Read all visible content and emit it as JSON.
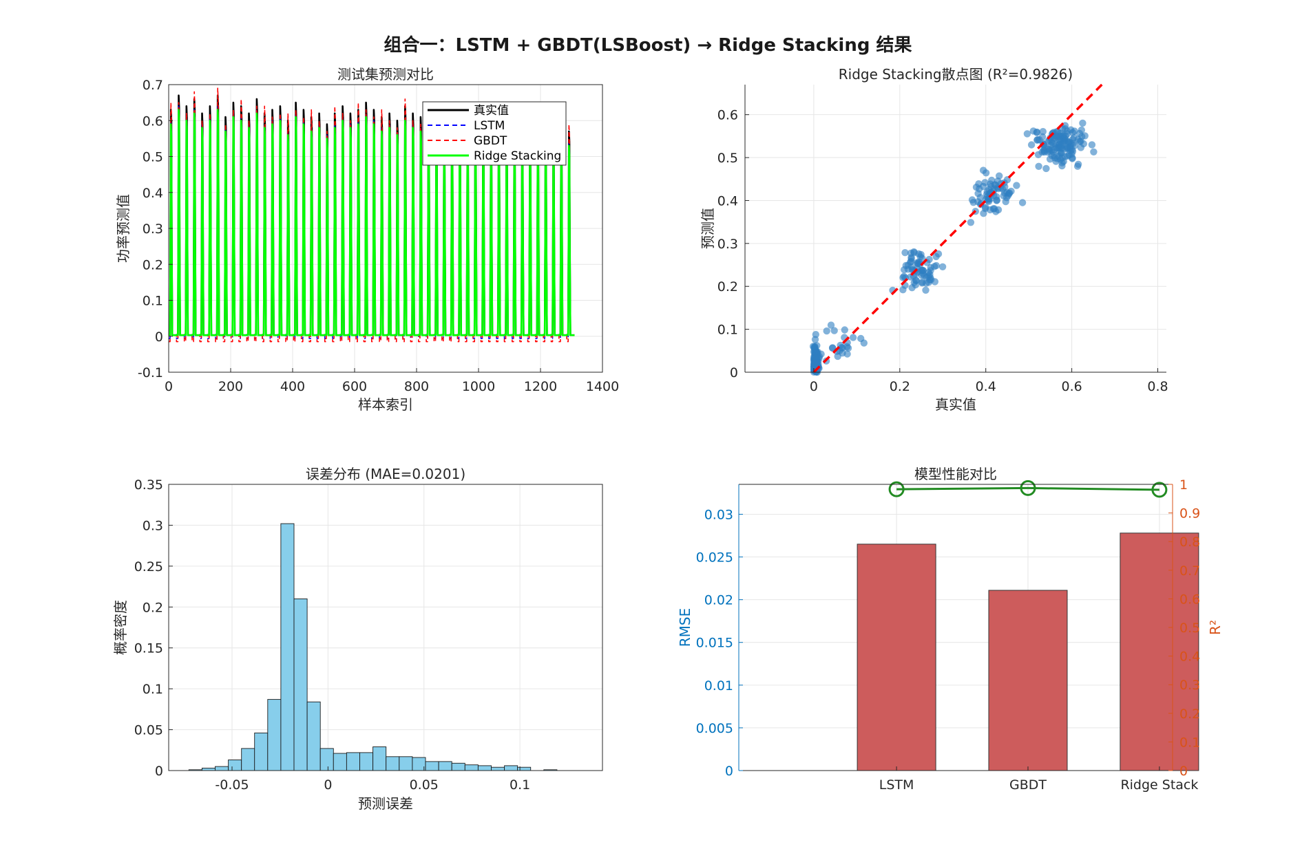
{
  "figure": {
    "title": "组合一：LSTM + GBDT(LSBoost) → Ridge Stacking 结果"
  },
  "colors": {
    "actual": "#000000",
    "lstm": "#0000ff",
    "gbdt": "#ff0000",
    "ridge": "#00ff00",
    "scatter": "#2f7fc2",
    "hist": "#87ceeb",
    "bar": "#cd5c5c",
    "r2_line": "#228b22",
    "rmse_axis": "#0072bd",
    "r2_axis": "#d95319"
  },
  "chart_data": [
    {
      "id": "timeseries",
      "type": "line",
      "title": "测试集预测对比",
      "xlabel": "样本索引",
      "ylabel": "功率预测值",
      "xlim": [
        0,
        1400
      ],
      "ylim": [
        -0.1,
        0.7
      ],
      "xticks": [
        0,
        200,
        400,
        600,
        800,
        1000,
        1200,
        1400
      ],
      "yticks": [
        -0.1,
        0,
        0.1,
        0.2,
        0.3,
        0.4,
        0.5,
        0.6,
        0.7
      ],
      "xtick_labels": [
        "0",
        "200",
        "400",
        "600",
        "800",
        "1000",
        "1200",
        "1400"
      ],
      "ytick_labels": [
        "-0.1",
        "0",
        "0.1",
        "0.2",
        "0.3",
        "0.4",
        "0.5",
        "0.6",
        "0.7"
      ],
      "grid": true,
      "legend_position": "top-right",
      "n_samples": 1310,
      "cycle_peaks_actual": [
        0.63,
        0.67,
        0.64,
        0.66,
        0.62,
        0.64,
        0.67,
        0.61,
        0.65,
        0.64,
        0.62,
        0.66,
        0.62,
        0.63,
        0.64,
        0.6,
        0.65,
        0.63,
        0.61,
        0.62,
        0.59,
        0.62,
        0.64,
        0.62,
        0.63,
        0.65,
        0.63,
        0.61,
        0.62,
        0.6,
        0.64,
        0.62,
        0.61,
        0.63,
        0.62,
        0.6,
        0.61,
        0.62,
        0.6,
        0.6,
        0.61,
        0.59,
        0.6,
        0.58,
        0.59,
        0.58,
        0.58,
        0.57,
        0.58,
        0.57,
        0.58,
        0.57
      ],
      "series": [
        {
          "name": "真实值",
          "style": "solid",
          "peak_offset": 0.0
        },
        {
          "name": "LSTM",
          "style": "dashed",
          "peak_offset": -0.03
        },
        {
          "name": "GBDT",
          "style": "dashed",
          "peak_offset": -0.01
        },
        {
          "name": "Ridge Stacking",
          "style": "solid",
          "peak_offset": -0.04
        }
      ]
    },
    {
      "id": "scatter",
      "type": "scatter",
      "title": "Ridge Stacking散点图 (R²=0.9826)",
      "xlabel": "真实值",
      "ylabel": "预测值",
      "xlim": [
        -0.16,
        0.82
      ],
      "ylim": [
        0,
        0.67
      ],
      "xticks": [
        0,
        0.2,
        0.4,
        0.6,
        0.8
      ],
      "yticks": [
        0,
        0.1,
        0.2,
        0.3,
        0.4,
        0.5,
        0.6
      ],
      "xtick_labels": [
        "0",
        "0.2",
        "0.4",
        "0.6",
        "0.8"
      ],
      "ytick_labels": [
        "0",
        "0.1",
        "0.2",
        "0.3",
        "0.4",
        "0.5",
        "0.6"
      ],
      "grid": true,
      "reference_line": {
        "from": [
          0,
          0
        ],
        "to": [
          0.67,
          0.67
        ]
      },
      "clusters": [
        {
          "x_center": 0.0,
          "y_center": 0.02,
          "x_spread": 0.008,
          "y_spread": 0.03,
          "count": 120
        },
        {
          "x_center": 0.06,
          "y_center": 0.07,
          "x_spread": 0.05,
          "y_spread": 0.04,
          "count": 25
        },
        {
          "x_center": 0.25,
          "y_center": 0.24,
          "x_spread": 0.04,
          "y_spread": 0.04,
          "count": 70
        },
        {
          "x_center": 0.42,
          "y_center": 0.41,
          "x_spread": 0.045,
          "y_spread": 0.045,
          "count": 70
        },
        {
          "x_center": 0.57,
          "y_center": 0.53,
          "x_spread": 0.05,
          "y_spread": 0.04,
          "count": 130
        }
      ]
    },
    {
      "id": "histogram",
      "type": "bar",
      "title": "误差分布 (MAE=0.0201)",
      "xlabel": "预测误差",
      "ylabel": "概率密度",
      "xlim": [
        -0.083,
        0.143
      ],
      "ylim": [
        0,
        0.35
      ],
      "xticks": [
        -0.05,
        0,
        0.05,
        0.1
      ],
      "yticks": [
        0,
        0.05,
        0.1,
        0.15,
        0.2,
        0.25,
        0.3,
        0.35
      ],
      "xtick_labels": [
        "-0.05",
        "0",
        "0.05",
        "0.1"
      ],
      "ytick_labels": [
        "0",
        "0.05",
        "0.1",
        "0.15",
        "0.2",
        "0.25",
        "0.3",
        "0.35"
      ],
      "grid": true,
      "bin_start": -0.0725,
      "bin_width": 0.00685,
      "values": [
        0.001,
        0.003,
        0.005,
        0.013,
        0.027,
        0.046,
        0.087,
        0.302,
        0.21,
        0.084,
        0.027,
        0.021,
        0.022,
        0.022,
        0.029,
        0.017,
        0.017,
        0.016,
        0.011,
        0.011,
        0.009,
        0.007,
        0.006,
        0.004,
        0.006,
        0.004,
        0.0,
        0.001
      ]
    },
    {
      "id": "performance",
      "type": "bar",
      "title": "模型性能对比",
      "ylabel": "RMSE",
      "ylabel_right": "R²",
      "categories": [
        "LSTM",
        "GBDT",
        "Ridge Stack"
      ],
      "ylim": [
        0,
        0.0335
      ],
      "ylim_right": [
        0,
        1
      ],
      "yticks": [
        0,
        0.005,
        0.01,
        0.015,
        0.02,
        0.025,
        0.03
      ],
      "ytick_labels": [
        "0",
        "0.005",
        "0.01",
        "0.015",
        "0.02",
        "0.025",
        "0.03"
      ],
      "yticks_right": [
        0,
        0.1,
        0.2,
        0.3,
        0.4,
        0.5,
        0.6,
        0.7,
        0.8,
        0.9,
        1
      ],
      "ytick_labels_right": [
        "0",
        "0.1",
        "0.2",
        "0.3",
        "0.4",
        "0.5",
        "0.6",
        "0.7",
        "0.8",
        "0.9",
        "1"
      ],
      "grid": true,
      "series": [
        {
          "name": "RMSE",
          "values": [
            0.0265,
            0.0211,
            0.0278
          ]
        },
        {
          "name": "R²",
          "values": [
            0.983,
            0.987,
            0.981
          ]
        }
      ]
    }
  ]
}
